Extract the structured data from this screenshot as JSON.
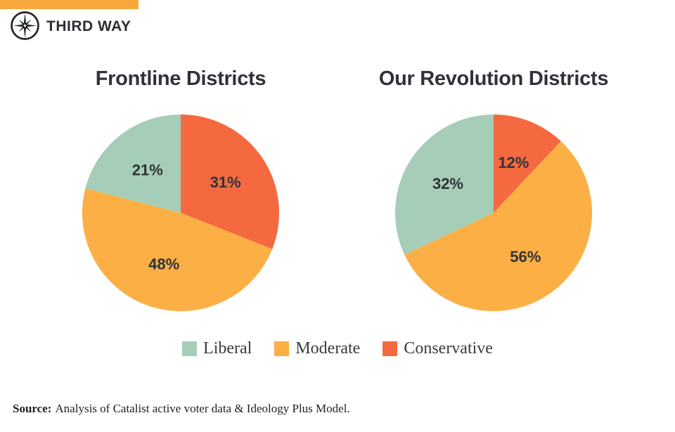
{
  "brand": {
    "name": "THIRD WAY"
  },
  "accent_bar_color": "#F8A73C",
  "series_colors": {
    "Liberal": "#A6CDB7",
    "Moderate": "#FBAF45",
    "Conservative": "#F4693F"
  },
  "chart_data": [
    {
      "type": "pie",
      "title": "Frontline Districts",
      "unit": "percent",
      "direction": "clockwise",
      "start_angle_deg": 0,
      "slices": [
        {
          "label": "Conservative",
          "value": 31
        },
        {
          "label": "Moderate",
          "value": 48
        },
        {
          "label": "Liberal",
          "value": 21
        }
      ]
    },
    {
      "type": "pie",
      "title": "Our Revolution Districts",
      "unit": "percent",
      "direction": "clockwise",
      "start_angle_deg": 0,
      "slices": [
        {
          "label": "Conservative",
          "value": 12
        },
        {
          "label": "Moderate",
          "value": 56
        },
        {
          "label": "Liberal",
          "value": 32
        }
      ]
    }
  ],
  "legend": {
    "items": [
      {
        "label": "Liberal"
      },
      {
        "label": "Moderate"
      },
      {
        "label": "Conservative"
      }
    ]
  },
  "source": {
    "prefix": "Source:",
    "text": "Analysis of Catalist active voter data & Ideology Plus Model."
  }
}
